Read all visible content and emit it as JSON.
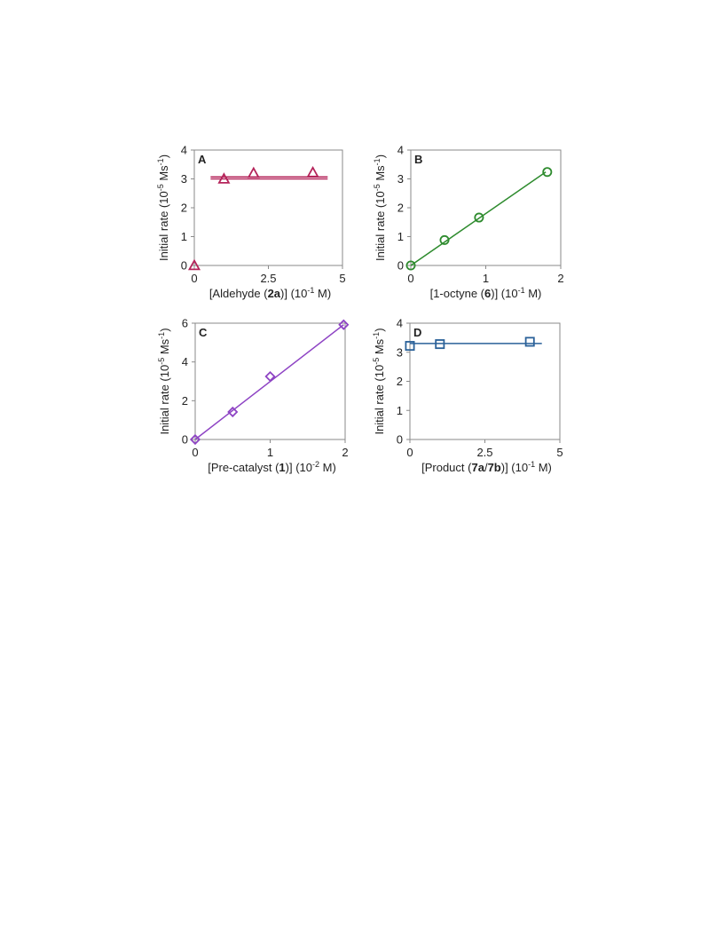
{
  "chart_data": [
    {
      "id": "A",
      "type": "scatter",
      "panel_label": "A",
      "ylabel": [
        "Initial rate (10",
        "-5",
        " Ms",
        "-1",
        ")"
      ],
      "xlabel": [
        "[Aldehyde (",
        "2a",
        ")] (10",
        "-1",
        " M)"
      ],
      "xlim": [
        0,
        5
      ],
      "ylim": [
        0,
        4
      ],
      "xticks": [
        0,
        2.5,
        5
      ],
      "xtick_labels": [
        "0",
        "2.5",
        "5"
      ],
      "yticks": [
        0,
        1,
        2,
        3,
        4
      ],
      "ytick_labels": [
        "0",
        "1",
        "2",
        "3",
        "4"
      ],
      "marker": "triangle",
      "color": "#b5245a",
      "x": [
        0,
        1,
        2,
        4
      ],
      "y": [
        0,
        3.0,
        3.2,
        3.22
      ],
      "fit_lines": [
        {
          "x": [
            0.55,
            4.5
          ],
          "y": [
            3.07,
            3.07
          ]
        },
        {
          "x": [
            0.55,
            4.5
          ],
          "y": [
            3.0,
            3.0
          ]
        }
      ]
    },
    {
      "id": "B",
      "type": "scatter",
      "panel_label": "B",
      "ylabel": [
        "Initial rate (10",
        "-5",
        " Ms",
        "-1",
        ")"
      ],
      "xlabel": [
        "[1-octyne (",
        "6",
        ")] (10",
        "-1",
        " M)"
      ],
      "xlim": [
        0,
        2
      ],
      "ylim": [
        0,
        4
      ],
      "xticks": [
        0,
        1,
        2
      ],
      "xtick_labels": [
        "0",
        "1",
        "2"
      ],
      "yticks": [
        0,
        1,
        2,
        3,
        4
      ],
      "ytick_labels": [
        "0",
        "1",
        "2",
        "3",
        "4"
      ],
      "marker": "circle",
      "color": "#2e8b2e",
      "x": [
        0,
        0.45,
        0.91,
        1.82
      ],
      "y": [
        0,
        0.88,
        1.66,
        3.24
      ],
      "fit_lines": [
        {
          "x": [
            0,
            1.8
          ],
          "y": [
            0,
            3.24
          ]
        }
      ]
    },
    {
      "id": "C",
      "type": "scatter",
      "panel_label": "C",
      "ylabel": [
        "Initial rate (10",
        "-5",
        " Ms",
        "-1",
        ")"
      ],
      "xlabel": [
        "[Pre-catalyst (",
        "1",
        ")] (10",
        "-2",
        " M)"
      ],
      "xlim": [
        0,
        2
      ],
      "ylim": [
        0,
        6
      ],
      "xticks": [
        0,
        1,
        2
      ],
      "xtick_labels": [
        "0",
        "1",
        "2"
      ],
      "yticks": [
        0,
        2,
        4,
        6
      ],
      "ytick_labels": [
        "0",
        "2",
        "4",
        "6"
      ],
      "marker": "diamond",
      "color": "#8e44c4",
      "x": [
        0,
        0.5,
        1.0,
        1.98
      ],
      "y": [
        0,
        1.42,
        3.25,
        5.92
      ],
      "fit_lines": [
        {
          "x": [
            0,
            1.98
          ],
          "y": [
            0,
            5.92
          ]
        }
      ]
    },
    {
      "id": "D",
      "type": "scatter",
      "panel_label": "D",
      "ylabel": [
        "Initial rate (10",
        "-5",
        " Ms",
        "-1",
        ")"
      ],
      "xlabel": [
        "[Product (",
        "7a",
        "/",
        "7b",
        ")] (10",
        "-1",
        " M)"
      ],
      "xlim": [
        0,
        5
      ],
      "ylim": [
        0,
        4
      ],
      "xticks": [
        0,
        2.5,
        5
      ],
      "xtick_labels": [
        "0",
        "2.5",
        "5"
      ],
      "yticks": [
        0,
        1,
        2,
        3,
        4
      ],
      "ytick_labels": [
        "0",
        "1",
        "2",
        "3",
        "4"
      ],
      "marker": "square",
      "color": "#2a6199",
      "x": [
        0,
        1,
        4
      ],
      "y": [
        3.22,
        3.28,
        3.36
      ],
      "fit_lines": [
        {
          "x": [
            0,
            4.4
          ],
          "y": [
            3.3,
            3.3
          ]
        }
      ]
    }
  ]
}
